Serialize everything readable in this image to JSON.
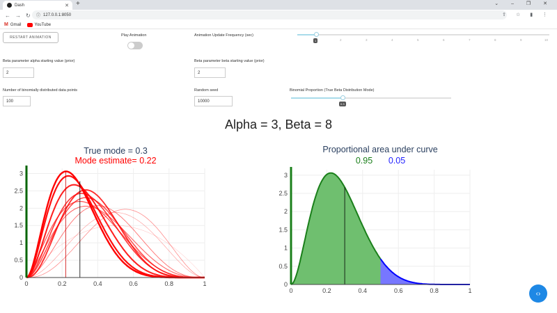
{
  "browser": {
    "tab_title": "Dash",
    "url": "127.0.0.1:8050",
    "bookmarks": [
      {
        "label": "Gmail",
        "icon": "gmail-icon"
      },
      {
        "label": "YouTube",
        "icon": "youtube-icon"
      }
    ]
  },
  "controls": {
    "restart_label": "RESTART ANIMATION",
    "play_label": "Play Animation",
    "play_on": false,
    "freq_label": "Animation Update Frequency (sec)",
    "freq_value": "1",
    "freq_ticks": [
      "2",
      "3",
      "4",
      "5",
      "6",
      "7",
      "8",
      "9",
      "10"
    ],
    "alpha_label": "Beta parameter alpha starting value (prior)",
    "alpha_value": "2",
    "beta_label": "Beta parameter beta starting value (prior)",
    "beta_value": "2",
    "n_label": "Number of binomially distributed data points",
    "n_value": "100",
    "seed_label": "Random seed",
    "seed_value": "10000",
    "prop_label": "Binomial Proportion (True Beta Distribution Mode)",
    "prop_value": "0.3"
  },
  "main_title": "Alpha = 3, Beta = 8",
  "chart_data": [
    {
      "type": "line",
      "title": "True mode = 0.3",
      "subtitle": "Mode estimate= 0.22",
      "xlim": [
        0,
        1
      ],
      "ylim": [
        0,
        3.15
      ],
      "x_ticks": [
        "0",
        "0.2",
        "0.4",
        "0.6",
        "0.8",
        "1"
      ],
      "y_ticks": [
        "0",
        "0.5",
        "1",
        "1.5",
        "2",
        "2.5",
        "3"
      ],
      "true_mode": 0.3,
      "mode_estimate": 0.22,
      "series": [
        {
          "a": 2,
          "b": 2
        },
        {
          "a": 3,
          "b": 3
        },
        {
          "a": 3.5,
          "b": 3
        },
        {
          "a": 3,
          "b": 4
        },
        {
          "a": 2.5,
          "b": 4
        },
        {
          "a": 2.5,
          "b": 4.5
        },
        {
          "a": 3,
          "b": 5
        },
        {
          "a": 3,
          "b": 5.5
        },
        {
          "a": 3.5,
          "b": 6
        },
        {
          "a": 3,
          "b": 6.5
        },
        {
          "a": 3,
          "b": 7.5
        },
        {
          "a": 3,
          "b": 8
        }
      ],
      "colors": {
        "curve": "#ff0000",
        "true_mode_line": "#000000",
        "estimate_line": "#cc0000",
        "left_axis_bar": "#006400"
      }
    },
    {
      "type": "area",
      "title": "Proportional area under curve",
      "left_area": "0.95",
      "right_area": "0.05",
      "xlim": [
        0,
        1
      ],
      "ylim": [
        0,
        3.15
      ],
      "x_ticks": [
        "0",
        "0.2",
        "0.4",
        "0.6",
        "0.8",
        "1"
      ],
      "y_ticks": [
        "0",
        "0.5",
        "1",
        "1.5",
        "2",
        "2.5",
        "3"
      ],
      "alpha": 3,
      "beta": 8,
      "split_x": 0.5,
      "mode_line_x": 0.3,
      "colors": {
        "left_fill": "#6fbf6f",
        "right_fill": "#7777ff",
        "left_curve": "#1a7f1a",
        "right_curve": "#0000ff",
        "left_text": "#1a7f1a",
        "right_text": "#2222ff"
      }
    }
  ]
}
